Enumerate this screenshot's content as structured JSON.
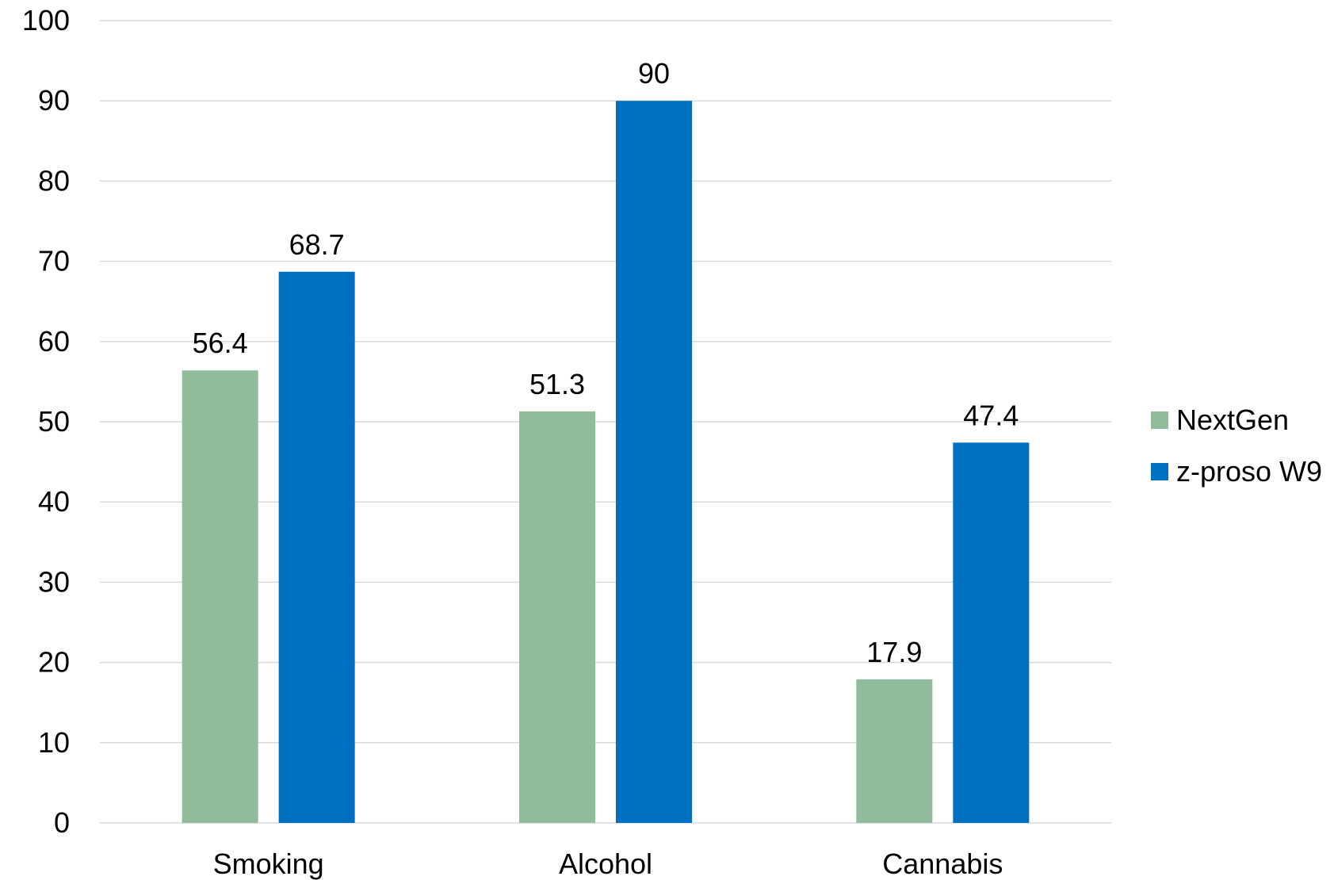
{
  "chart_data": {
    "type": "bar",
    "categories": [
      "Smoking",
      "Alcohol",
      "Cannabis"
    ],
    "series": [
      {
        "name": "NextGen",
        "values": [
          56.4,
          51.3,
          17.9
        ],
        "labels": [
          "56.4",
          "51.3",
          "17.9"
        ],
        "color": "#8fbc9a"
      },
      {
        "name": "z-proso W9",
        "values": [
          68.7,
          90,
          47.4
        ],
        "labels": [
          "68.7",
          "90",
          "47.4"
        ],
        "color": "#0070c0"
      }
    ],
    "ylim": [
      0,
      100
    ],
    "yticks": [
      "0",
      "10",
      "20",
      "30",
      "40",
      "50",
      "60",
      "70",
      "80",
      "90",
      "100"
    ],
    "grid": true,
    "legend_position": "right",
    "title": "",
    "xlabel": "",
    "ylabel": ""
  }
}
